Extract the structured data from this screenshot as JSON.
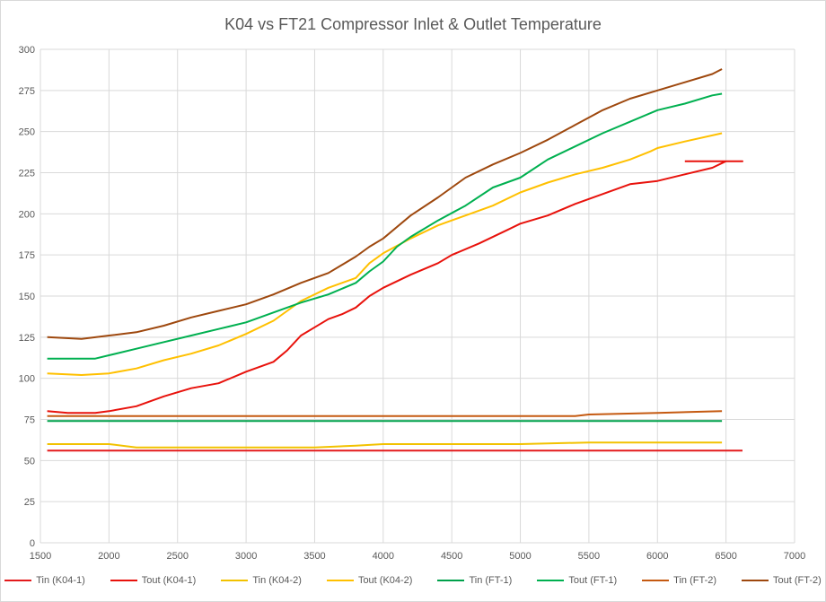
{
  "chart_data": {
    "type": "line",
    "title": "K04 vs FT21 Compressor Inlet & Outlet Temperature",
    "xlim": [
      1500,
      7000
    ],
    "ylim": [
      0,
      300
    ],
    "x_ticks": [
      "1500",
      "2000",
      "2500",
      "3000",
      "3500",
      "4000",
      "4500",
      "5000",
      "5500",
      "6000",
      "6500",
      "7000"
    ],
    "y_ticks": [
      "0",
      "25",
      "50",
      "75",
      "100",
      "125",
      "150",
      "175",
      "200",
      "225",
      "250",
      "275",
      "300"
    ],
    "grid": true,
    "legend_position": "bottom",
    "series": [
      {
        "name": "Tin (K04-1)",
        "color": "#e31a1c",
        "x": [
          1550,
          2000,
          2300,
          2600,
          3000,
          3400,
          3500,
          4000,
          4500,
          5000,
          5500,
          6000,
          6400,
          6620
        ],
        "y": [
          56,
          56,
          56,
          56,
          56,
          56,
          56,
          56,
          56,
          56,
          56,
          56,
          56,
          56
        ]
      },
      {
        "name": "Tout (K04-1)",
        "color": "#e8120c",
        "x": [
          1550,
          1700,
          1900,
          2000,
          2200,
          2400,
          2600,
          2800,
          3000,
          3200,
          3300,
          3400,
          3500,
          3600,
          3700,
          3800,
          3900,
          4000,
          4200,
          4400,
          4500,
          4700,
          4900,
          5000,
          5200,
          5400,
          5600,
          5800,
          6000,
          6200,
          6400,
          6500,
          6620,
          6200
        ],
        "y": [
          80,
          79,
          79,
          80,
          83,
          89,
          94,
          97,
          104,
          110,
          117,
          126,
          131,
          136,
          139,
          143,
          150,
          155,
          163,
          170,
          175,
          182,
          190,
          194,
          199,
          206,
          212,
          218,
          220,
          224,
          228,
          232,
          232,
          232
        ]
      },
      {
        "name": "Tin (K04-2)",
        "color": "#f2c200",
        "x": [
          1550,
          2000,
          2200,
          2500,
          3000,
          3500,
          3800,
          4000,
          4500,
          5000,
          5500,
          6000,
          6470
        ],
        "y": [
          60,
          60,
          58,
          58,
          58,
          58,
          59,
          60,
          60,
          60,
          61,
          61,
          61
        ]
      },
      {
        "name": "Tout (K04-2)",
        "color": "#ffc000",
        "x": [
          1550,
          1800,
          2000,
          2200,
          2400,
          2600,
          2800,
          3000,
          3200,
          3400,
          3600,
          3800,
          3900,
          4000,
          4200,
          4400,
          4600,
          4800,
          5000,
          5200,
          5400,
          5600,
          5800,
          5950,
          6000,
          6200,
          6470
        ],
        "y": [
          103,
          102,
          103,
          106,
          111,
          115,
          120,
          127,
          135,
          147,
          155,
          161,
          170,
          176,
          185,
          193,
          199,
          205,
          213,
          219,
          224,
          228,
          233,
          238,
          240,
          244,
          249
        ]
      },
      {
        "name": "Tin (FT-1)",
        "color": "#00a14b",
        "x": [
          1550,
          2000,
          2500,
          3000,
          3500,
          4000,
          4500,
          5000,
          5500,
          6000,
          6470
        ],
        "y": [
          74,
          74,
          74,
          74,
          74,
          74,
          74,
          74,
          74,
          74,
          74
        ]
      },
      {
        "name": "Tout (FT-1)",
        "color": "#00b050",
        "x": [
          1550,
          1900,
          2000,
          2200,
          2400,
          2600,
          2800,
          3000,
          3200,
          3400,
          3600,
          3800,
          3900,
          4000,
          4100,
          4200,
          4400,
          4600,
          4800,
          5000,
          5200,
          5400,
          5600,
          5800,
          6000,
          6200,
          6400,
          6470
        ],
        "y": [
          112,
          112,
          114,
          118,
          122,
          126,
          130,
          134,
          140,
          146,
          151,
          158,
          165,
          171,
          180,
          186,
          196,
          205,
          216,
          222,
          233,
          241,
          249,
          256,
          263,
          267,
          272,
          273
        ]
      },
      {
        "name": "Tin (FT-2)",
        "color": "#c55a11",
        "x": [
          1550,
          2000,
          2500,
          3000,
          3500,
          4000,
          4500,
          5000,
          5400,
          5500,
          6000,
          6470
        ],
        "y": [
          77,
          77,
          77,
          77,
          77,
          77,
          77,
          77,
          77,
          78,
          79,
          80
        ]
      },
      {
        "name": "Tout (FT-2)",
        "color": "#9e480e",
        "x": [
          1550,
          1800,
          2000,
          2200,
          2400,
          2600,
          2800,
          3000,
          3200,
          3400,
          3600,
          3800,
          3900,
          4000,
          4200,
          4400,
          4500,
          4600,
          4800,
          5000,
          5200,
          5400,
          5600,
          5800,
          6000,
          6200,
          6400,
          6470
        ],
        "y": [
          125,
          124,
          126,
          128,
          132,
          137,
          141,
          145,
          151,
          158,
          164,
          174,
          180,
          185,
          199,
          210,
          216,
          222,
          230,
          237,
          245,
          254,
          263,
          270,
          275,
          280,
          285,
          288
        ]
      }
    ]
  }
}
